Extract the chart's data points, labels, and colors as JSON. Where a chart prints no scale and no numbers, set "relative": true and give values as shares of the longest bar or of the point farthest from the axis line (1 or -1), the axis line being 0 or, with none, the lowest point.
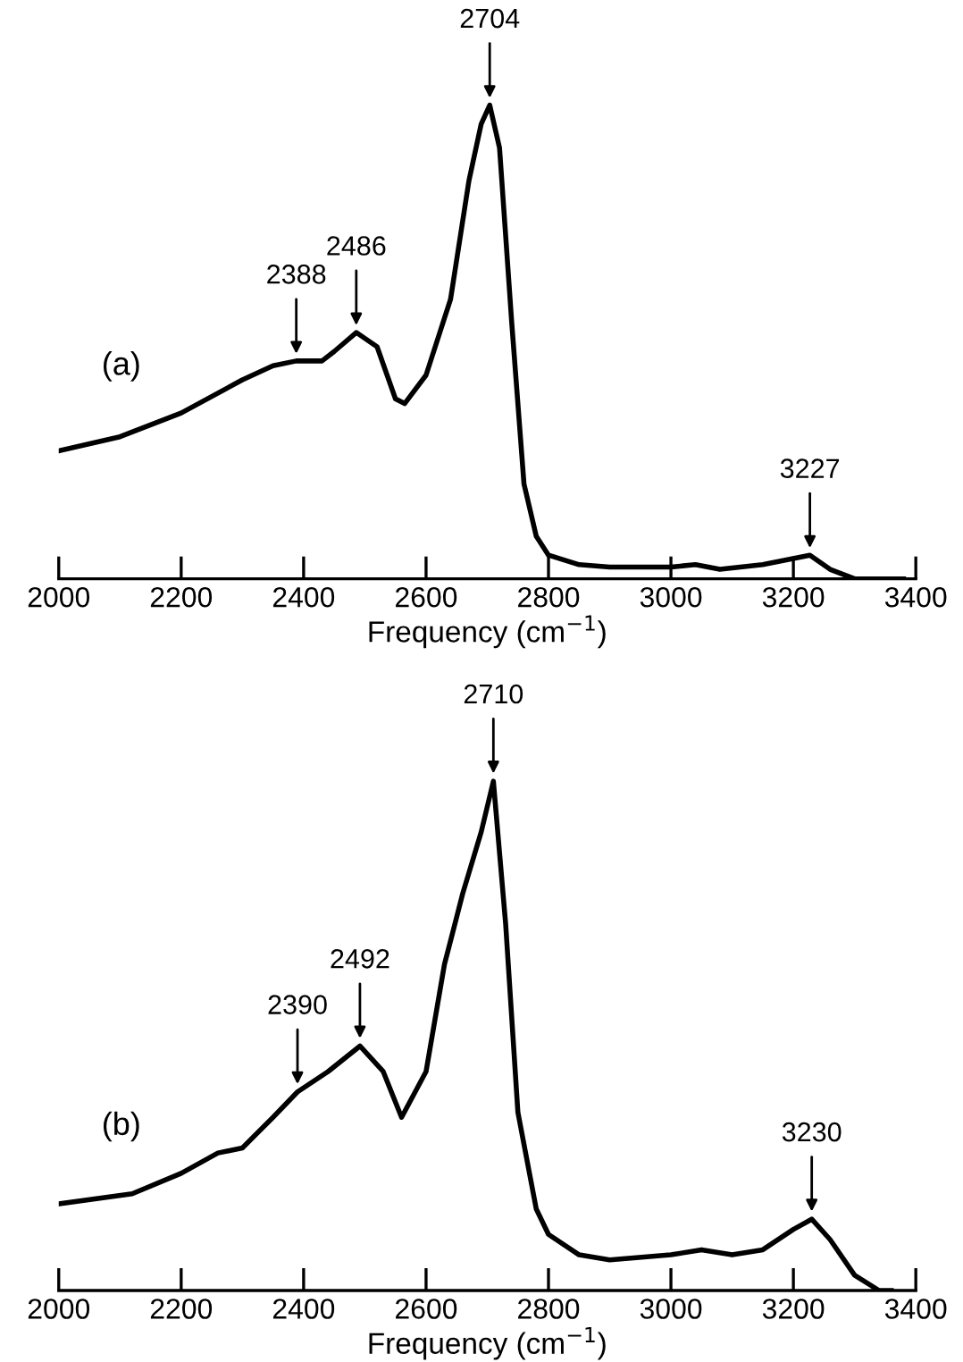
{
  "chart_data": [
    {
      "type": "line",
      "relative": true,
      "xlabel": "Frequency (cm$^{−1}$)",
      "xlim": [
        2000,
        3400
      ],
      "xticks": [
        2000,
        2200,
        2400,
        2600,
        2800,
        3000,
        3200,
        3400
      ],
      "grid": false,
      "legend": false,
      "marker": "none",
      "line_style": "solid",
      "series": [
        {
          "color": "#000000",
          "x": [
            2000,
            2100,
            2200,
            2300,
            2350,
            2388,
            2430,
            2450,
            2486,
            2520,
            2550,
            2565,
            2600,
            2640,
            2670,
            2690,
            2704,
            2720,
            2740,
            2760,
            2780,
            2800,
            2850,
            2900,
            3000,
            3040,
            3080,
            3150,
            3227,
            3260,
            3300,
            3380
          ],
          "values": [
            0.27,
            0.3,
            0.35,
            0.42,
            0.45,
            0.46,
            0.46,
            0.48,
            0.52,
            0.49,
            0.38,
            0.37,
            0.43,
            0.59,
            0.84,
            0.96,
            1.0,
            0.91,
            0.54,
            0.2,
            0.09,
            0.05,
            0.03,
            0.025,
            0.025,
            0.03,
            0.02,
            0.03,
            0.05,
            0.02,
            0.0,
            0.0
          ]
        }
      ],
      "annotations": [
        "(a)",
        {
          "text": "2388",
          "x": 2388,
          "y": 0.46
        },
        {
          "text": "2486",
          "x": 2486,
          "y": 0.52
        },
        {
          "text": "2704",
          "x": 2704,
          "y": 1.0
        },
        {
          "text": "3227",
          "x": 3227,
          "y": 0.05
        }
      ]
    },
    {
      "type": "line",
      "relative": true,
      "xlabel": "Frequency (cm$^{−1}$)",
      "xlim": [
        2000,
        3400
      ],
      "xticks": [
        2000,
        2200,
        2400,
        2600,
        2800,
        3000,
        3200,
        3400
      ],
      "grid": false,
      "legend": false,
      "marker": "none",
      "line_style": "solid",
      "series": [
        {
          "color": "#000000",
          "x": [
            2000,
            2120,
            2200,
            2260,
            2300,
            2350,
            2390,
            2440,
            2492,
            2530,
            2560,
            2600,
            2630,
            2660,
            2690,
            2710,
            2730,
            2750,
            2780,
            2800,
            2850,
            2900,
            3000,
            3050,
            3100,
            3150,
            3200,
            3230,
            3260,
            3300,
            3340,
            3360
          ],
          "values": [
            0.17,
            0.19,
            0.23,
            0.27,
            0.28,
            0.34,
            0.39,
            0.43,
            0.48,
            0.43,
            0.34,
            0.43,
            0.64,
            0.78,
            0.9,
            1.0,
            0.72,
            0.35,
            0.16,
            0.11,
            0.07,
            0.06,
            0.07,
            0.08,
            0.07,
            0.08,
            0.12,
            0.14,
            0.1,
            0.03,
            0.0,
            0.0
          ]
        }
      ],
      "annotations": [
        "(b)",
        {
          "text": "2390",
          "x": 2390,
          "y": 0.39
        },
        {
          "text": "2492",
          "x": 2492,
          "y": 0.48
        },
        {
          "text": "2710",
          "x": 2710,
          "y": 1.0
        },
        {
          "text": "3230",
          "x": 3230,
          "y": 0.14
        }
      ]
    }
  ]
}
